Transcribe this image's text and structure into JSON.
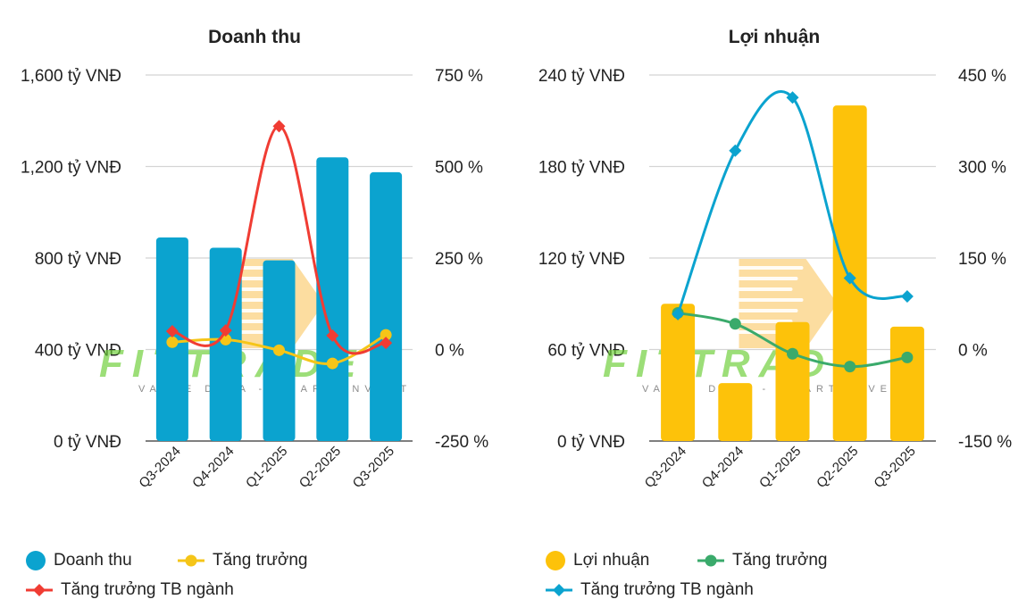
{
  "watermark": {
    "text": "FITTRADE",
    "tagline": "VALUE DATA - SMART INVEST"
  },
  "chart_data": [
    {
      "type": "bar",
      "title": "Doanh thu",
      "categories": [
        "Q3-2024",
        "Q4-2024",
        "Q1-2025",
        "Q2-2025",
        "Q3-2025"
      ],
      "y_left": {
        "ticks": [
          "1,600 tỷ VNĐ",
          "1,200 tỷ VNĐ",
          "800 tỷ VNĐ",
          "400 tỷ VNĐ",
          "0 tỷ VNĐ"
        ],
        "range": [
          0,
          1600
        ]
      },
      "y_right": {
        "ticks": [
          "750 %",
          "500 %",
          "250 %",
          "0 %",
          "-250 %"
        ],
        "range": [
          -250,
          750
        ]
      },
      "series": [
        {
          "name": "Doanh thu",
          "kind": "bar",
          "axis": "left",
          "color": "#0ba3cf",
          "values": [
            890,
            845,
            790,
            1240,
            1175
          ]
        },
        {
          "name": "Tăng trưởng",
          "kind": "line",
          "axis": "right",
          "color": "#f5c518",
          "marker": "circle",
          "values": [
            20,
            27,
            -2,
            -38,
            40
          ]
        },
        {
          "name": "Tăng trưởng TB ngành",
          "kind": "line",
          "axis": "right",
          "color": "#f03c33",
          "marker": "diamond",
          "values": [
            50,
            52,
            610,
            38,
            18
          ]
        }
      ],
      "legend": [
        {
          "label": "Doanh thu",
          "color": "#0ba3cf",
          "symbol": "circle"
        },
        {
          "label": "Tăng trưởng",
          "color": "#f5c518",
          "symbol": "line-circle"
        },
        {
          "label": "Tăng trưởng TB ngành",
          "color": "#f03c33",
          "symbol": "line-diamond"
        }
      ],
      "legend_position": "bottom-left",
      "grid": true
    },
    {
      "type": "bar",
      "title": "Lợi nhuận",
      "categories": [
        "Q3-2024",
        "Q4-2024",
        "Q1-2025",
        "Q2-2025",
        "Q3-2025"
      ],
      "y_left": {
        "ticks": [
          "240 tỷ VNĐ",
          "180 tỷ VNĐ",
          "120 tỷ VNĐ",
          "60 tỷ VNĐ",
          "0 tỷ VNĐ"
        ],
        "range": [
          0,
          240
        ]
      },
      "y_right": {
        "ticks": [
          "450 %",
          "300 %",
          "150 %",
          "0 %",
          "-150 %"
        ],
        "range": [
          -150,
          450
        ]
      },
      "series": [
        {
          "name": "Lợi nhuận",
          "kind": "bar",
          "axis": "left",
          "color": "#fdc20a",
          "values": [
            90,
            38,
            78,
            220,
            75
          ]
        },
        {
          "name": "Tăng trưởng",
          "kind": "line",
          "axis": "right",
          "color": "#3aaa6b",
          "marker": "circle",
          "values": [
            60,
            42,
            -7,
            -28,
            -13
          ]
        },
        {
          "name": "Tăng trưởng TB ngành",
          "kind": "line",
          "axis": "right",
          "color": "#0ba3cf",
          "marker": "diamond",
          "values": [
            58,
            326,
            413,
            117,
            87
          ]
        }
      ],
      "legend": [
        {
          "label": "Lợi nhuận",
          "color": "#fdc20a",
          "symbol": "circle"
        },
        {
          "label": "Tăng trưởng",
          "color": "#3aaa6b",
          "symbol": "line-circle"
        },
        {
          "label": "Tăng trưởng TB ngành",
          "color": "#0ba3cf",
          "symbol": "line-diamond"
        }
      ],
      "legend_position": "bottom-left",
      "grid": true
    }
  ]
}
